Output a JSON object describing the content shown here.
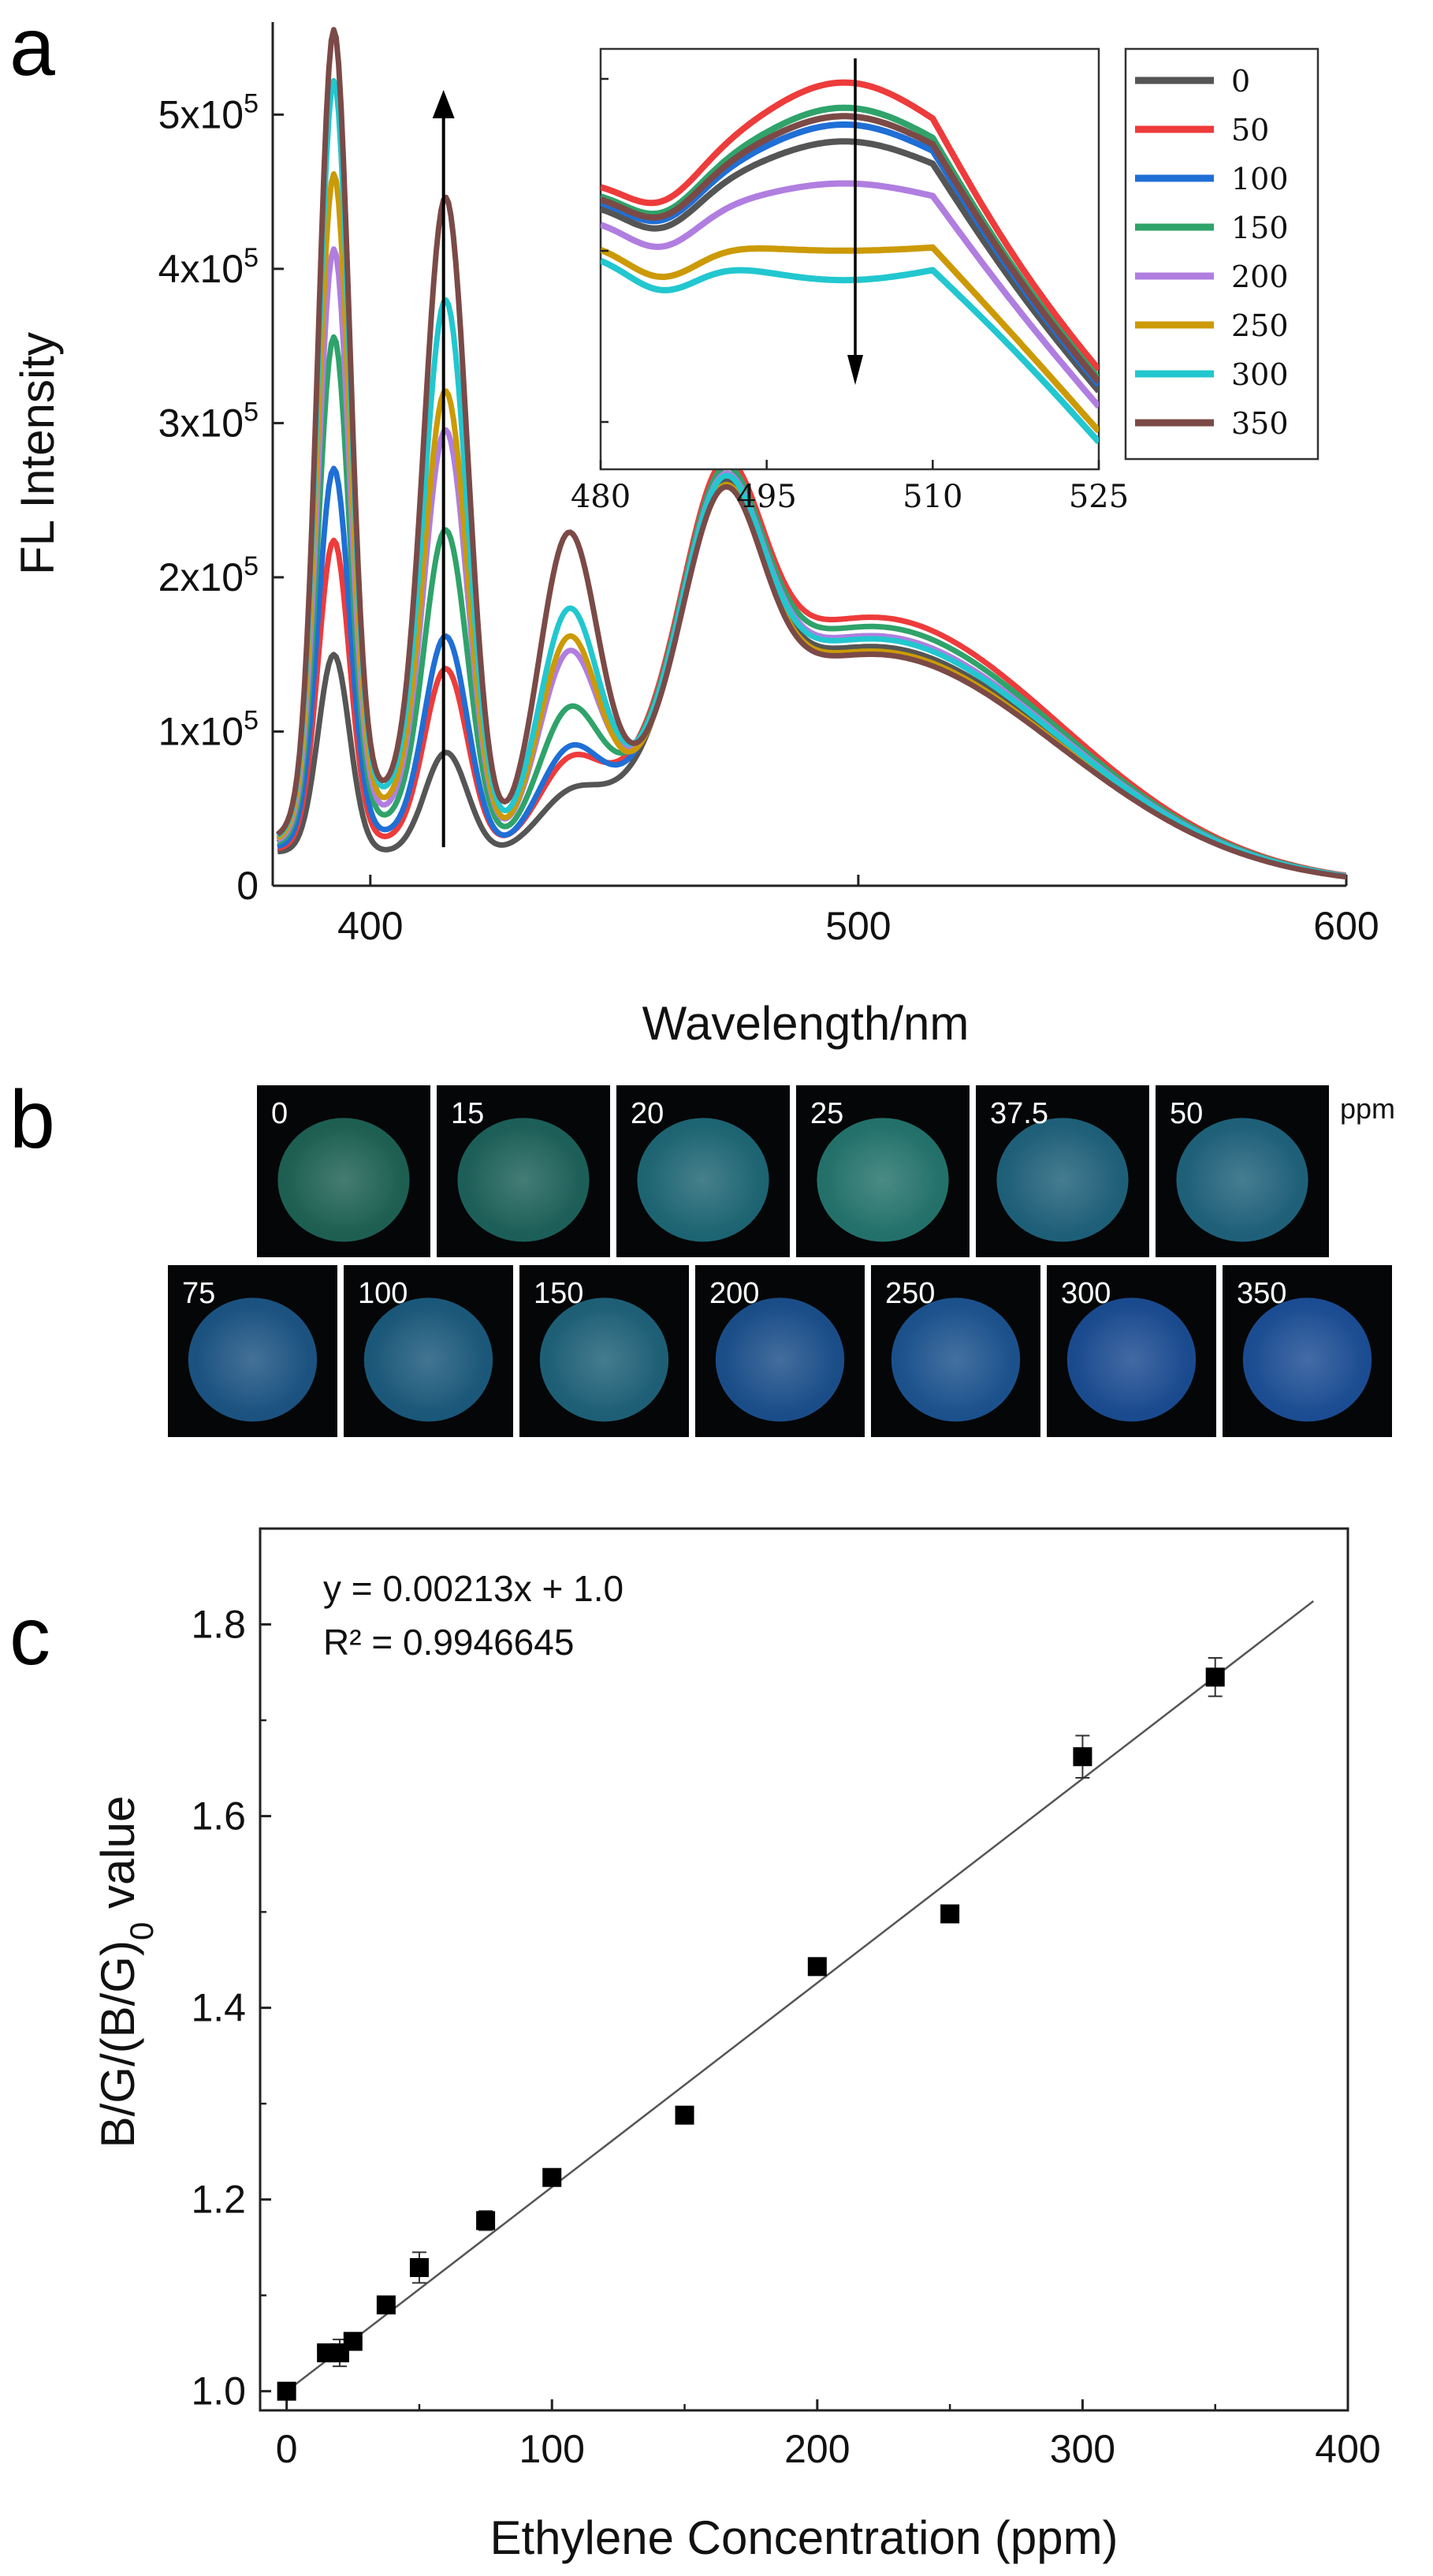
{
  "panel_labels": {
    "a": "a",
    "b": "b",
    "c": "c"
  },
  "colors": {
    "0": "#555555",
    "50": "#ee3b3b",
    "100": "#1f6fd6",
    "150": "#2fa36a",
    "200": "#b07ee0",
    "250": "#cc9a06",
    "300": "#22c7cf",
    "350": "#7b4a47"
  },
  "chart_data": [
    {
      "id": "a",
      "type": "line",
      "title": "",
      "xlabel": "Wavelength/nm",
      "ylabel": "FL Intensity",
      "xlim": [
        380,
        600
      ],
      "ylim": [
        0,
        560000
      ],
      "x_ticks": [
        400,
        500,
        600
      ],
      "x_tick_labels": [
        "400",
        "500",
        "600"
      ],
      "y_ticks": [
        0,
        100000,
        200000,
        300000,
        400000,
        500000
      ],
      "y_tick_labels": [
        {
          "mant": "0",
          "exp": ""
        },
        {
          "mant": "1x10",
          "exp": "5"
        },
        {
          "mant": "2x10",
          "exp": "5"
        },
        {
          "mant": "3x10",
          "exp": "5"
        },
        {
          "mant": "4x10",
          "exp": "5"
        },
        {
          "mant": "5x10",
          "exp": "5"
        }
      ],
      "arrow": {
        "x": 415,
        "from": 25000,
        "to": 515000,
        "direction": "up"
      },
      "legend_position": "top-right",
      "series": [
        {
          "name": "0",
          "color_key": "0",
          "params": {
            "h1": 132000,
            "h2": 70000,
            "h3": 22000,
            "hg": 155000
          }
        },
        {
          "name": "50",
          "color_key": "50",
          "params": {
            "h1": 203000,
            "h2": 120000,
            "h3": 38000,
            "hg": 174000
          }
        },
        {
          "name": "100",
          "color_key": "100",
          "params": {
            "h1": 248000,
            "h2": 140000,
            "h3": 48000,
            "hg": 162000
          }
        },
        {
          "name": "150",
          "color_key": "150",
          "params": {
            "h1": 330000,
            "h2": 205000,
            "h3": 72000,
            "hg": 168000
          }
        },
        {
          "name": "200",
          "color_key": "200",
          "params": {
            "h1": 385000,
            "h2": 268000,
            "h3": 110000,
            "hg": 162000
          }
        },
        {
          "name": "250",
          "color_key": "250",
          "params": {
            "h1": 432000,
            "h2": 292000,
            "h3": 122000,
            "hg": 152000
          }
        },
        {
          "name": "300",
          "color_key": "300",
          "params": {
            "h1": 490000,
            "h2": 348000,
            "h3": 138000,
            "hg": 160000
          }
        },
        {
          "name": "350",
          "color_key": "350",
          "params": {
            "h1": 522000,
            "h2": 414000,
            "h3": 190000,
            "hg": 150000
          }
        }
      ],
      "inset": {
        "xlim": [
          480,
          525
        ],
        "x_ticks": [
          480,
          495,
          510,
          525
        ],
        "x_tick_labels": [
          "480",
          "495",
          "510",
          "525"
        ],
        "arrow": {
          "x": 503,
          "direction": "down"
        },
        "peaks": [
          {
            "name": "0",
            "peak": 0.72
          },
          {
            "name": "50",
            "peak": 0.86
          },
          {
            "name": "100",
            "peak": 0.76
          },
          {
            "name": "150",
            "peak": 0.8
          },
          {
            "name": "200",
            "peak": 0.62
          },
          {
            "name": "250",
            "peak": 0.46
          },
          {
            "name": "300",
            "peak": 0.39
          },
          {
            "name": "350",
            "peak": 0.78
          }
        ]
      }
    },
    {
      "id": "c",
      "type": "scatter",
      "title": "",
      "xlabel": "Ethylene Concentration (ppm)",
      "ylabel_parts": {
        "main": "B/G/(B/G)",
        "sub": "0",
        "tail": " value"
      },
      "xlim": [
        -10,
        400
      ],
      "ylim": [
        0.98,
        1.9
      ],
      "x_ticks": [
        0,
        100,
        200,
        300,
        400
      ],
      "x_tick_labels": [
        "0",
        "100",
        "200",
        "300",
        "400"
      ],
      "y_ticks": [
        1.0,
        1.2,
        1.4,
        1.6,
        1.8
      ],
      "y_tick_labels": [
        "1.0",
        "1.2",
        "1.4",
        "1.6",
        "1.8"
      ],
      "points": [
        {
          "x": 0,
          "y": 1.0,
          "err": 0.004
        },
        {
          "x": 15,
          "y": 1.04,
          "err": 0.006
        },
        {
          "x": 20,
          "y": 1.04,
          "err": 0.014
        },
        {
          "x": 25,
          "y": 1.052,
          "err": 0.006
        },
        {
          "x": 37.5,
          "y": 1.09,
          "err": 0.006
        },
        {
          "x": 50,
          "y": 1.129,
          "err": 0.016
        },
        {
          "x": 75,
          "y": 1.178,
          "err": 0.01
        },
        {
          "x": 100,
          "y": 1.223,
          "err": 0.006
        },
        {
          "x": 150,
          "y": 1.288,
          "err": 0.006
        },
        {
          "x": 200,
          "y": 1.443,
          "err": 0.006
        },
        {
          "x": 250,
          "y": 1.498,
          "err": 0.006
        },
        {
          "x": 300,
          "y": 1.662,
          "err": 0.022
        },
        {
          "x": 350,
          "y": 1.745,
          "err": 0.02
        }
      ],
      "fit": {
        "slope": 0.00213,
        "intercept": 1.0,
        "x_range": [
          0,
          387
        ]
      },
      "annotations": [
        "y = 0.00213x + 1.0",
        "R² = 0.9946645"
      ]
    }
  ],
  "photos": {
    "unit": "ppm",
    "row1": [
      {
        "label": "0",
        "color": "#1d5f52"
      },
      {
        "label": "15",
        "color": "#1c5f58"
      },
      {
        "label": "20",
        "color": "#1d6472"
      },
      {
        "label": "25",
        "color": "#23716a"
      },
      {
        "label": "37.5",
        "color": "#1e5f78"
      },
      {
        "label": "50",
        "color": "#1e6079"
      }
    ],
    "row2": [
      {
        "label": "75",
        "color": "#1b5280"
      },
      {
        "label": "100",
        "color": "#1a5779"
      },
      {
        "label": "150",
        "color": "#1d5f76"
      },
      {
        "label": "200",
        "color": "#1a4d88"
      },
      {
        "label": "250",
        "color": "#1b518c"
      },
      {
        "label": "300",
        "color": "#1a4a8f"
      },
      {
        "label": "350",
        "color": "#1b4c92"
      }
    ]
  }
}
